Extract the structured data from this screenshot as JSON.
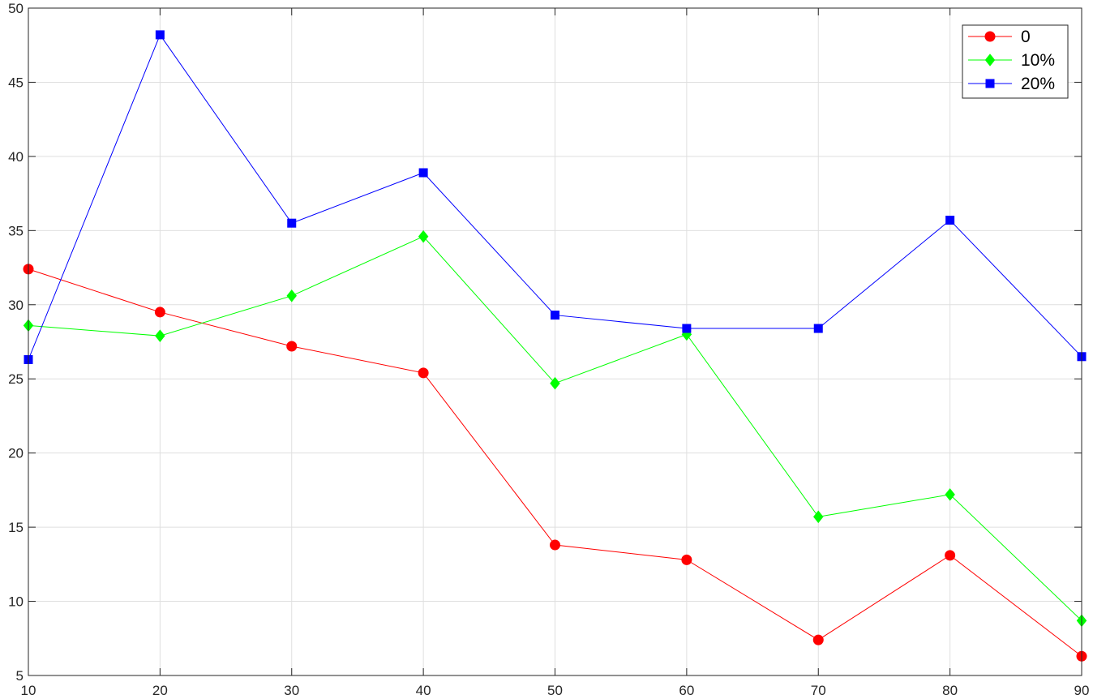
{
  "chart_data": {
    "type": "line",
    "x": [
      10,
      20,
      30,
      40,
      50,
      60,
      70,
      80,
      90
    ],
    "xlim": [
      10,
      90
    ],
    "ylim": [
      5,
      50
    ],
    "xticks": [
      10,
      20,
      30,
      40,
      50,
      60,
      70,
      80,
      90
    ],
    "yticks": [
      5,
      10,
      15,
      20,
      25,
      30,
      35,
      40,
      45,
      50
    ],
    "grid": true,
    "legend_position": "top-right",
    "series": [
      {
        "name": "0",
        "color": "#ff0000",
        "marker": "circle",
        "values": [
          32.4,
          29.5,
          27.2,
          25.4,
          13.8,
          12.8,
          7.4,
          13.1,
          6.3
        ]
      },
      {
        "name": "10%",
        "color": "#00ff00",
        "marker": "diamond",
        "values": [
          28.6,
          27.9,
          30.6,
          34.6,
          24.7,
          28.0,
          15.7,
          17.2,
          8.7
        ]
      },
      {
        "name": "20%",
        "color": "#0000ff",
        "marker": "square",
        "values": [
          26.3,
          48.2,
          35.5,
          38.9,
          29.3,
          28.4,
          28.4,
          35.7,
          26.5
        ]
      }
    ]
  }
}
